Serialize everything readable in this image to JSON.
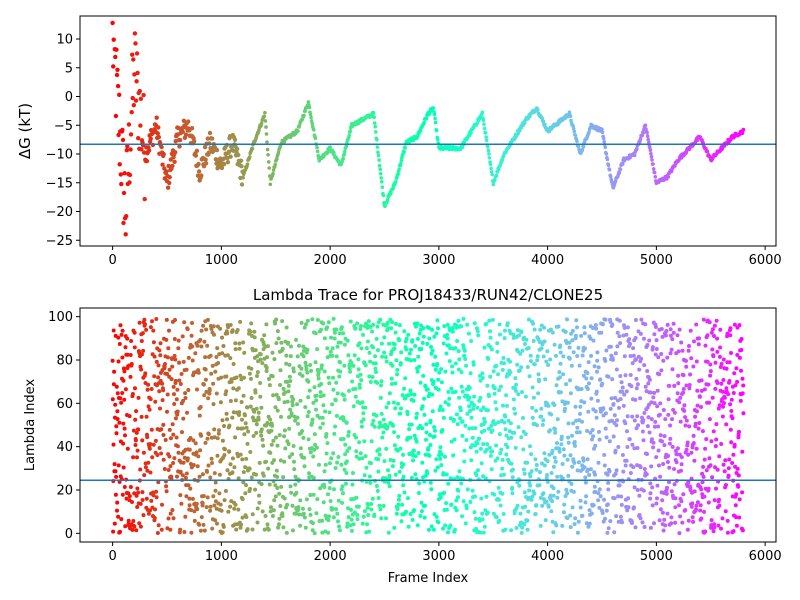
{
  "chart_data": [
    {
      "type": "scatter",
      "title": "",
      "xlabel": "",
      "ylabel": "ΔG (kT)",
      "xlim": [
        -300,
        6100
      ],
      "ylim": [
        -26,
        14
      ],
      "xticks": [
        0,
        1000,
        2000,
        3000,
        4000,
        5000,
        6000
      ],
      "yticks": [
        -25,
        -20,
        -15,
        -10,
        -5,
        0,
        5,
        10
      ],
      "colormap": "rainbow (red at start → violet at end)",
      "reference_line": {
        "y": -8.3,
        "color": "#1f77b4"
      },
      "grid": false,
      "keypoints": [
        {
          "x": 0,
          "y": 10
        },
        {
          "x": 60,
          "y": -5
        },
        {
          "x": 120,
          "y": -20
        },
        {
          "x": 200,
          "y": 5
        },
        {
          "x": 300,
          "y": -10
        },
        {
          "x": 400,
          "y": -5
        },
        {
          "x": 500,
          "y": -15
        },
        {
          "x": 600,
          "y": -7
        },
        {
          "x": 700,
          "y": -5
        },
        {
          "x": 800,
          "y": -13
        },
        {
          "x": 900,
          "y": -8
        },
        {
          "x": 1000,
          "y": -12
        },
        {
          "x": 1100,
          "y": -8
        },
        {
          "x": 1200,
          "y": -14
        },
        {
          "x": 1300,
          "y": -8
        },
        {
          "x": 1400,
          "y": -3
        },
        {
          "x": 1450,
          "y": -15
        },
        {
          "x": 1550,
          "y": -8
        },
        {
          "x": 1700,
          "y": -6
        },
        {
          "x": 1800,
          "y": -1
        },
        {
          "x": 1900,
          "y": -11
        },
        {
          "x": 2000,
          "y": -9
        },
        {
          "x": 2100,
          "y": -12
        },
        {
          "x": 2200,
          "y": -5
        },
        {
          "x": 2300,
          "y": -4
        },
        {
          "x": 2400,
          "y": -3
        },
        {
          "x": 2500,
          "y": -19
        },
        {
          "x": 2600,
          "y": -15
        },
        {
          "x": 2700,
          "y": -8
        },
        {
          "x": 2800,
          "y": -7
        },
        {
          "x": 2900,
          "y": -3
        },
        {
          "x": 2950,
          "y": -2
        },
        {
          "x": 3000,
          "y": -9
        },
        {
          "x": 3200,
          "y": -9
        },
        {
          "x": 3400,
          "y": -3
        },
        {
          "x": 3500,
          "y": -15
        },
        {
          "x": 3600,
          "y": -10
        },
        {
          "x": 3800,
          "y": -4
        },
        {
          "x": 3900,
          "y": -2
        },
        {
          "x": 4000,
          "y": -6
        },
        {
          "x": 4200,
          "y": -3
        },
        {
          "x": 4300,
          "y": -10
        },
        {
          "x": 4400,
          "y": -5
        },
        {
          "x": 4500,
          "y": -6
        },
        {
          "x": 4600,
          "y": -16
        },
        {
          "x": 4700,
          "y": -11
        },
        {
          "x": 4800,
          "y": -10
        },
        {
          "x": 4900,
          "y": -5
        },
        {
          "x": 5000,
          "y": -15
        },
        {
          "x": 5100,
          "y": -14
        },
        {
          "x": 5200,
          "y": -11
        },
        {
          "x": 5300,
          "y": -9
        },
        {
          "x": 5400,
          "y": -7
        },
        {
          "x": 5500,
          "y": -11
        },
        {
          "x": 5600,
          "y": -9
        },
        {
          "x": 5700,
          "y": -7
        },
        {
          "x": 5800,
          "y": -6
        }
      ]
    },
    {
      "type": "scatter",
      "title": "Lambda Trace for PROJ18433/RUN42/CLONE25",
      "xlabel": "Frame Index",
      "ylabel": "Lambda Index",
      "xlim": [
        -300,
        6100
      ],
      "ylim": [
        -4,
        104
      ],
      "xticks": [
        0,
        1000,
        2000,
        3000,
        4000,
        5000,
        6000
      ],
      "yticks": [
        0,
        20,
        40,
        60,
        80,
        100
      ],
      "colormap": "rainbow (red at start → violet at end)",
      "reference_line": {
        "y": 24.5,
        "color": "#1f77b4"
      },
      "grid": false,
      "frames": 5800,
      "lambda_range": [
        0,
        99
      ]
    }
  ]
}
